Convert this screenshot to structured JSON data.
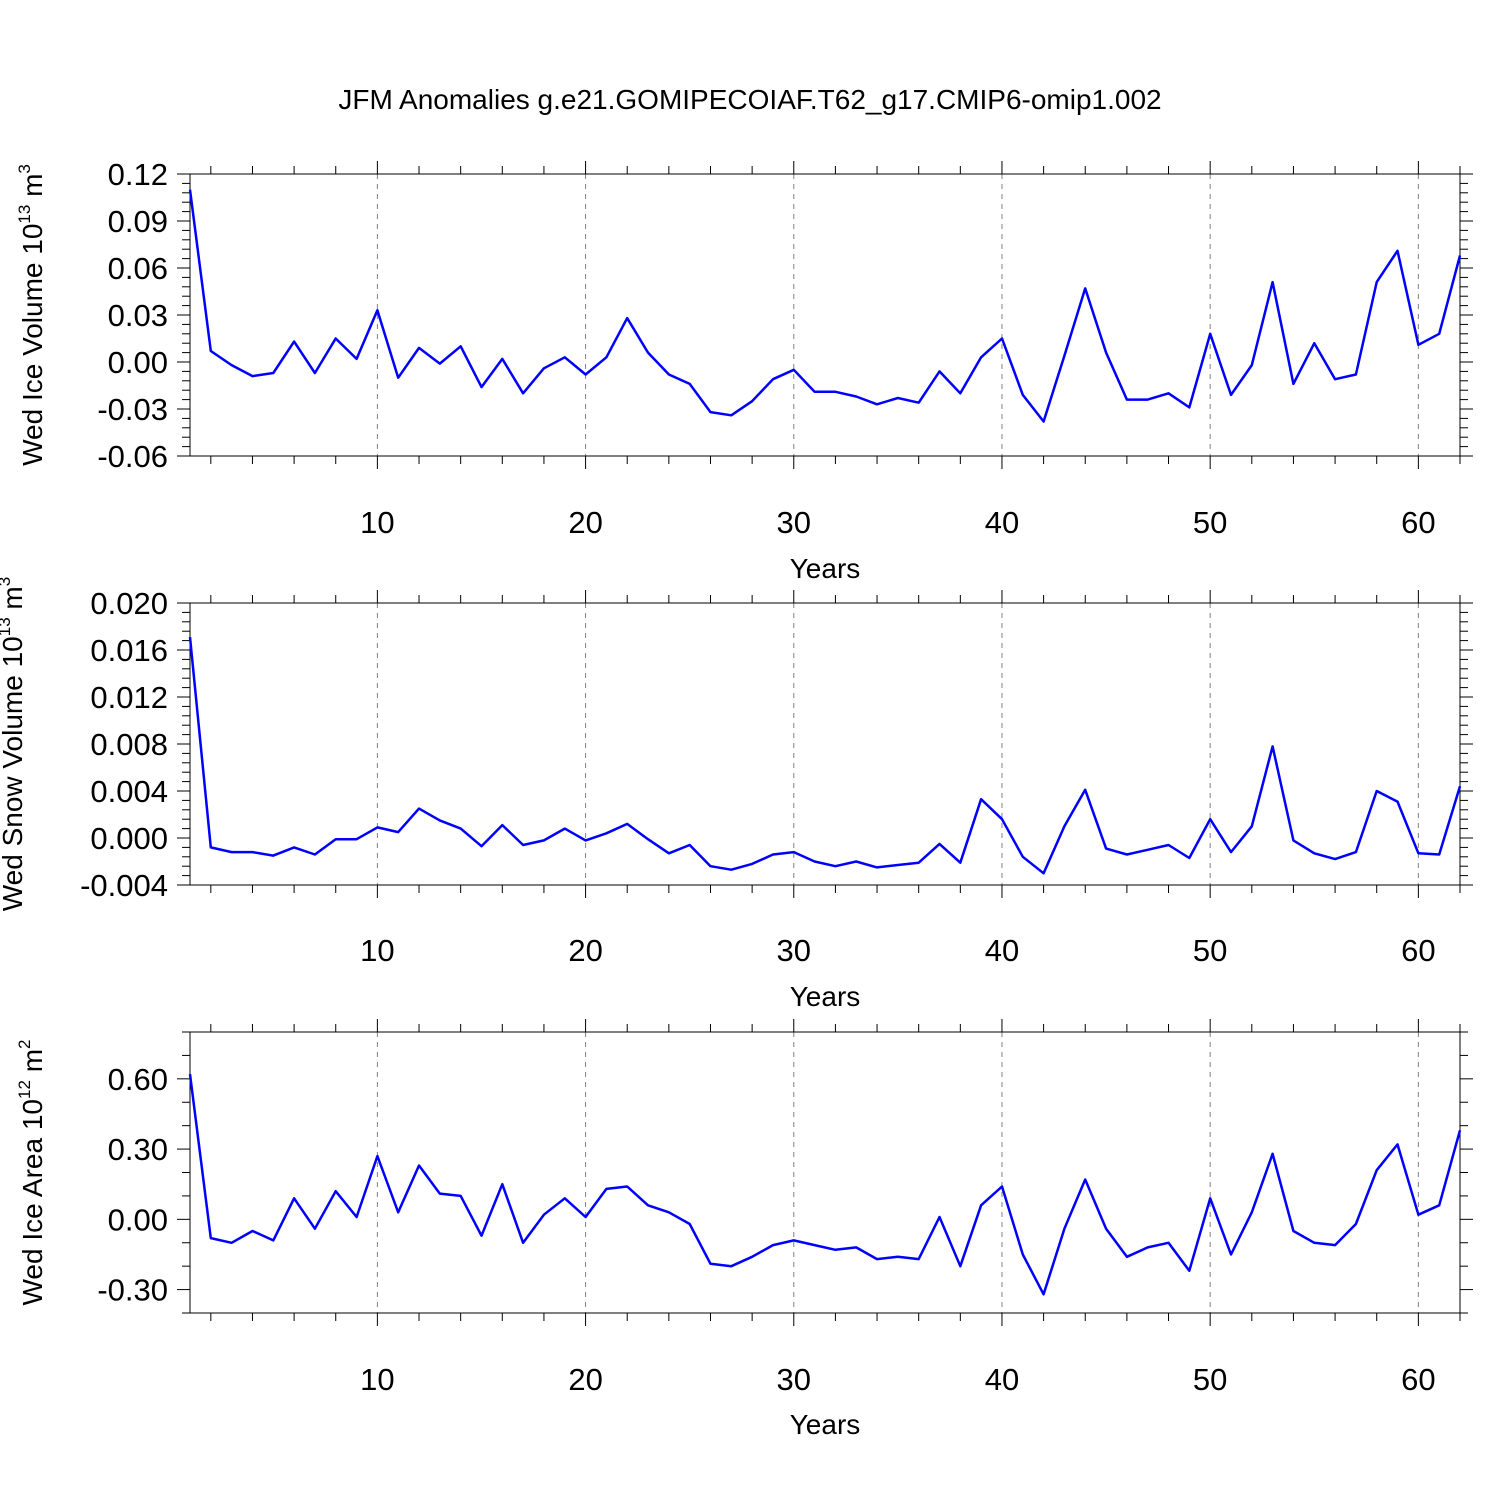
{
  "title": "JFM Anomalies g.e21.GOMIPECOIAF.T62_g17.CMIP6-omip1.002",
  "colors": {
    "line": "#0000ff",
    "axis": "#000000",
    "grid": "#808080"
  },
  "chart_data": [
    {
      "type": "line",
      "ylabel_main": "Wed Ice Volume 10",
      "ylabel_exp": "13",
      "ylabel_unit": " m",
      "ylabel_unit_exp": "3",
      "xlabel": "Years",
      "xlim": [
        1,
        62
      ],
      "ylim": [
        -0.06,
        0.12
      ],
      "xticks": [
        10,
        20,
        30,
        40,
        50,
        60
      ],
      "xticklabels": [
        "10",
        "20",
        "30",
        "40",
        "50",
        "60"
      ],
      "yticks": [
        -0.06,
        -0.03,
        0.0,
        0.03,
        0.06,
        0.09,
        0.12
      ],
      "yticklabels": [
        "-0.06",
        "-0.03",
        "0.00",
        "0.03",
        "0.06",
        "0.09",
        "0.12"
      ],
      "yminor_step": 0.006,
      "x": [
        1,
        2,
        3,
        4,
        5,
        6,
        7,
        8,
        9,
        10,
        11,
        12,
        13,
        14,
        15,
        16,
        17,
        18,
        19,
        20,
        21,
        22,
        23,
        24,
        25,
        26,
        27,
        28,
        29,
        30,
        31,
        32,
        33,
        34,
        35,
        36,
        37,
        38,
        39,
        40,
        41,
        42,
        43,
        44,
        45,
        46,
        47,
        48,
        49,
        50,
        51,
        52,
        53,
        54,
        55,
        56,
        57,
        58,
        59,
        60,
        61,
        62
      ],
      "values": [
        0.11,
        0.007,
        -0.002,
        -0.009,
        -0.007,
        0.013,
        -0.007,
        0.015,
        0.002,
        0.033,
        -0.01,
        0.009,
        -0.001,
        0.01,
        -0.016,
        0.002,
        -0.02,
        -0.004,
        0.003,
        -0.008,
        0.003,
        0.028,
        0.006,
        -0.008,
        -0.014,
        -0.032,
        -0.034,
        -0.025,
        -0.011,
        -0.005,
        -0.019,
        -0.019,
        -0.022,
        -0.027,
        -0.023,
        -0.026,
        -0.006,
        -0.02,
        0.003,
        0.015,
        -0.021,
        -0.038,
        0.004,
        0.047,
        0.006,
        -0.024,
        -0.024,
        -0.02,
        -0.029,
        0.018,
        -0.021,
        -0.002,
        0.051,
        -0.014,
        0.012,
        -0.011,
        -0.008,
        0.051,
        0.071,
        0.011,
        0.018,
        0.068
      ]
    },
    {
      "type": "line",
      "ylabel_main": "Wed Snow Volume 10",
      "ylabel_exp": "13",
      "ylabel_unit": " m",
      "ylabel_unit_exp": "3",
      "xlabel": "Years",
      "xlim": [
        1,
        62
      ],
      "ylim": [
        -0.004,
        0.02
      ],
      "xticks": [
        10,
        20,
        30,
        40,
        50,
        60
      ],
      "xticklabels": [
        "10",
        "20",
        "30",
        "40",
        "50",
        "60"
      ],
      "yticks": [
        -0.004,
        0.0,
        0.004,
        0.008,
        0.012,
        0.016,
        0.02
      ],
      "yticklabels": [
        "-0.004",
        "0.000",
        "0.004",
        "0.008",
        "0.012",
        "0.016",
        "0.020"
      ],
      "yminor_step": 0.0008,
      "x": [
        1,
        2,
        3,
        4,
        5,
        6,
        7,
        8,
        9,
        10,
        11,
        12,
        13,
        14,
        15,
        16,
        17,
        18,
        19,
        20,
        21,
        22,
        23,
        24,
        25,
        26,
        27,
        28,
        29,
        30,
        31,
        32,
        33,
        34,
        35,
        36,
        37,
        38,
        39,
        40,
        41,
        42,
        43,
        44,
        45,
        46,
        47,
        48,
        49,
        50,
        51,
        52,
        53,
        54,
        55,
        56,
        57,
        58,
        59,
        60,
        61,
        62
      ],
      "values": [
        0.0171,
        -0.0008,
        -0.0012,
        -0.0012,
        -0.0015,
        -0.0008,
        -0.0014,
        -0.0001,
        -0.0001,
        0.0009,
        0.0005,
        0.0025,
        0.0015,
        0.0008,
        -0.0007,
        0.0011,
        -0.0006,
        -0.0002,
        0.0008,
        -0.0002,
        0.0004,
        0.0012,
        -0.0001,
        -0.0013,
        -0.0006,
        -0.0024,
        -0.0027,
        -0.0022,
        -0.0014,
        -0.0012,
        -0.002,
        -0.0024,
        -0.002,
        -0.0025,
        -0.0023,
        -0.0021,
        -0.0005,
        -0.0021,
        0.0033,
        0.0016,
        -0.0016,
        -0.003,
        0.001,
        0.0041,
        -0.0009,
        -0.0014,
        -0.001,
        -0.0006,
        -0.0017,
        0.0016,
        -0.0012,
        0.001,
        0.0078,
        -0.0002,
        -0.0013,
        -0.0018,
        -0.0012,
        0.004,
        0.0031,
        -0.0013,
        -0.0014,
        0.0044
      ]
    },
    {
      "type": "line",
      "ylabel_main": "Wed Ice Area 10",
      "ylabel_exp": "12",
      "ylabel_unit": " m",
      "ylabel_unit_exp": "2",
      "xlabel": "Years",
      "xlim": [
        1,
        62
      ],
      "ylim": [
        -0.4,
        0.8
      ],
      "xticks": [
        10,
        20,
        30,
        40,
        50,
        60
      ],
      "xticklabels": [
        "10",
        "20",
        "30",
        "40",
        "50",
        "60"
      ],
      "yticks": [
        -0.3,
        0.0,
        0.3,
        0.6
      ],
      "yticklabels": [
        "-0.30",
        "0.00",
        "0.30",
        "0.60"
      ],
      "yminor_step": 0.1,
      "x": [
        1,
        2,
        3,
        4,
        5,
        6,
        7,
        8,
        9,
        10,
        11,
        12,
        13,
        14,
        15,
        16,
        17,
        18,
        19,
        20,
        21,
        22,
        23,
        24,
        25,
        26,
        27,
        28,
        29,
        30,
        31,
        32,
        33,
        34,
        35,
        36,
        37,
        38,
        39,
        40,
        41,
        42,
        43,
        44,
        45,
        46,
        47,
        48,
        49,
        50,
        51,
        52,
        53,
        54,
        55,
        56,
        57,
        58,
        59,
        60,
        61,
        62
      ],
      "values": [
        0.62,
        -0.08,
        -0.1,
        -0.05,
        -0.09,
        0.09,
        -0.04,
        0.12,
        0.01,
        0.27,
        0.03,
        0.23,
        0.11,
        0.1,
        -0.07,
        0.15,
        -0.1,
        0.02,
        0.09,
        0.01,
        0.13,
        0.14,
        0.06,
        0.03,
        -0.02,
        -0.19,
        -0.2,
        -0.16,
        -0.11,
        -0.09,
        -0.11,
        -0.13,
        -0.12,
        -0.17,
        -0.16,
        -0.17,
        0.01,
        -0.2,
        0.06,
        0.14,
        -0.15,
        -0.32,
        -0.04,
        0.17,
        -0.04,
        -0.16,
        -0.12,
        -0.1,
        -0.22,
        0.09,
        -0.15,
        0.03,
        0.28,
        -0.05,
        -0.1,
        -0.11,
        -0.02,
        0.21,
        0.32,
        0.02,
        0.06,
        0.38
      ]
    }
  ]
}
